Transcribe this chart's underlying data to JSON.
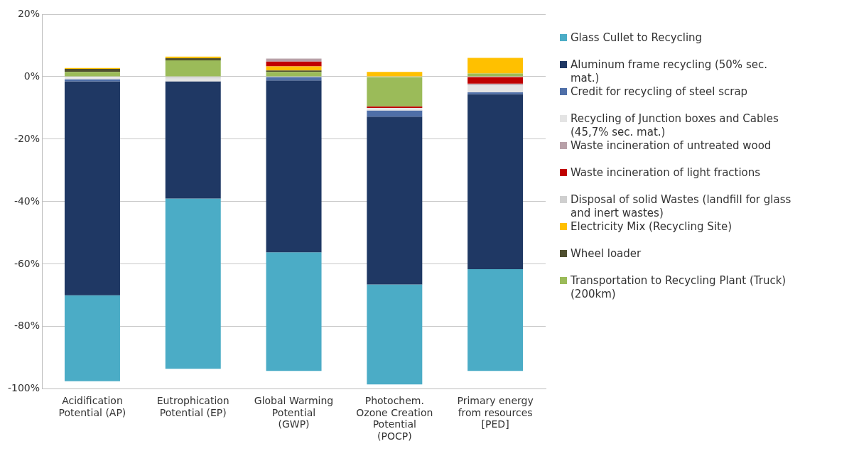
{
  "chart_data": {
    "type": "bar",
    "stacked": true,
    "categories": [
      "Acidification Potential (AP)",
      "Eutrophication Potential (EP)",
      "Global Warming Potential (GWP)",
      "Photochem. Ozone Creation Potential (POCP)",
      "Primary energy from resources [PED]"
    ],
    "series": [
      {
        "name": "Transportation to Recycling Plant (Truck) (200km)",
        "color": "#9bbb59",
        "values": [
          1.5,
          5.2,
          1.5,
          -9.5,
          1.0
        ]
      },
      {
        "name": "Wheel loader",
        "color": "#4f4f2f",
        "values": [
          1.0,
          0.7,
          0.5,
          null,
          null
        ]
      },
      {
        "name": "Electricity Mix (Recycling Site)",
        "color": "#ffc000",
        "values": [
          0.3,
          0.5,
          1.3,
          1.5,
          5.0
        ]
      },
      {
        "name": "Disposal of solid Wastes (landfill for glass and inert wastes)",
        "color": "#cfcfcf",
        "values": [
          null,
          -0.6,
          null,
          null,
          null
        ]
      },
      {
        "name": "Waste incineration of light fractions",
        "color": "#c00000",
        "values": [
          null,
          null,
          1.5,
          -0.5,
          -2.2
        ]
      },
      {
        "name": "Waste incineration of untreated wood",
        "color": "#b8a0a8",
        "values": [
          null,
          null,
          1.0,
          null,
          -0.4
        ]
      },
      {
        "name": "Recycling of Junction boxes and Cables (45,7% sec. mat.)",
        "color": "#e4e4e4",
        "values": [
          -0.8,
          -0.9,
          null,
          -0.8,
          -2.4
        ]
      },
      {
        "name": "Credit for recycling of steel scrap",
        "color": "#4f6fa8",
        "values": [
          -0.7,
          null,
          -1.2,
          -2.0,
          -0.6
        ]
      },
      {
        "name": "Aluminum frame recycling (50% sec. mat.)",
        "color": "#1f3864",
        "values": [
          -68.5,
          -37.5,
          -55,
          -53.7,
          -56
        ]
      },
      {
        "name": "Glass Cullet to Recycling",
        "color": "#4bacc6",
        "values": [
          -27.5,
          -54.5,
          -38,
          -32,
          -32.6
        ]
      }
    ],
    "ylim": [
      -100,
      20
    ],
    "yticks": [
      {
        "value": -100,
        "label": "-100%"
      },
      {
        "value": -80,
        "label": "-80%"
      },
      {
        "value": -60,
        "label": "-60%"
      },
      {
        "value": -40,
        "label": "-40%"
      },
      {
        "value": -20,
        "label": "-20%"
      },
      {
        "value": 0,
        "label": "0%"
      },
      {
        "value": 20,
        "label": "20%"
      }
    ],
    "grid": "y",
    "legend": "right"
  }
}
